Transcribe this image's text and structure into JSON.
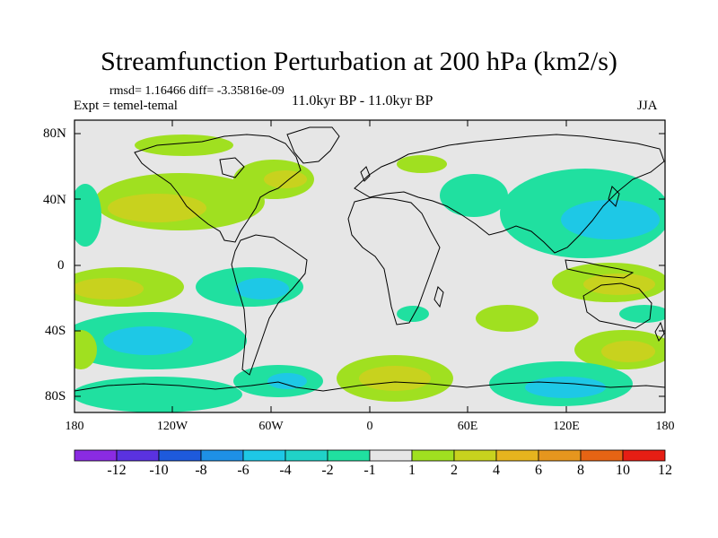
{
  "title": "Streamfunction Perturbation at 200 hPa (km2/s)",
  "stats": "rmsd= 1.16466 diff= -3.35816e-09",
  "experiment": "Expt = temel-temal",
  "period": "11.0kyr BP - 11.0kyr BP",
  "season": "JJA",
  "lat_labels": [
    "80N",
    "40N",
    "0",
    "40S",
    "80S"
  ],
  "lon_labels": [
    "180",
    "120W",
    "60W",
    "0",
    "60E",
    "120E",
    "180"
  ],
  "colorbar": {
    "labels": [
      "-12",
      "-10",
      "-8",
      "-6",
      "-4",
      "-2",
      "-1",
      "1",
      "2",
      "4",
      "6",
      "8",
      "10",
      "12"
    ],
    "colors": [
      "#8a2be2",
      "#5a32e0",
      "#1e5adc",
      "#1e90e6",
      "#1ec8e6",
      "#20d2c8",
      "#20e0a0",
      "#e6e6e6",
      "#a0e020",
      "#c8d21e",
      "#e6b41e",
      "#e6961e",
      "#e66414",
      "#e61e14"
    ]
  },
  "palette": {
    "neutral": "#e6e6e6",
    "pos1": "#a0e020",
    "pos2": "#c8d21e",
    "neg1": "#20e0a0",
    "neg2": "#20d2c8",
    "neg3": "#1ec8e6"
  }
}
